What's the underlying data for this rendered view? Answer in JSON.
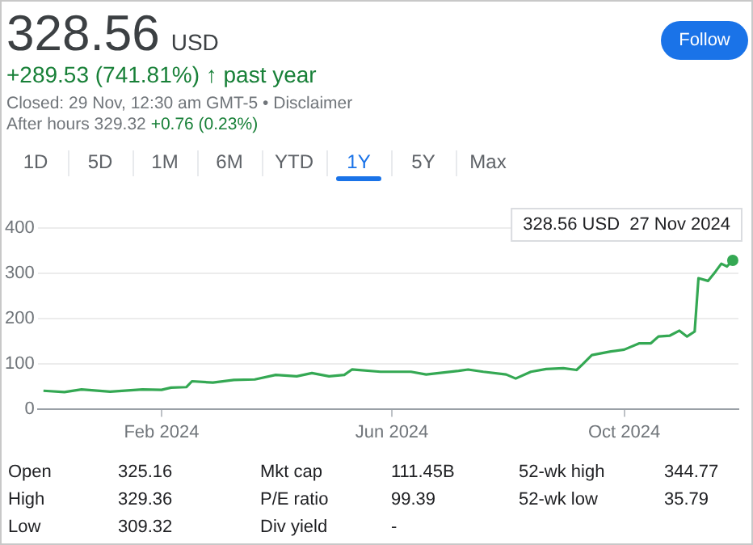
{
  "chart_data": {
    "type": "line",
    "title": "328.56 USD",
    "subtitle": "+289.53 (741.81%) ↑ past year",
    "annotations": [
      "Closed: 29 Nov, 12:30 am GMT-5 • Disclaimer",
      "After hours 329.32",
      "+0.76 (0.23%)",
      "1D",
      "5D",
      "1M",
      "6M",
      "YTD",
      "1Y",
      "5Y",
      "Max",
      "Follow",
      "Open",
      "325.16",
      "Mkt cap",
      "111.45B",
      "52-wk high",
      "344.77",
      "High",
      "329.36",
      "P/E ratio",
      "99.39",
      "52-wk low",
      "35.79",
      "Low",
      "309.32",
      "Div yield",
      "-",
      {
        "text": "328.56 USD  27 Nov 2024",
        "x": "2024-11-27",
        "y": 328.56
      }
    ],
    "x": [
      "2023-12-01",
      "2023-12-12",
      "2023-12-21",
      "2024-01-05",
      "2024-01-22",
      "2024-02-01",
      "2024-02-06",
      "2024-02-14",
      "2024-02-17",
      "2024-02-28",
      "2024-03-10",
      "2024-03-21",
      "2024-04-01",
      "2024-04-12",
      "2024-04-20",
      "2024-04-29",
      "2024-05-07",
      "2024-05-11",
      "2024-05-26",
      "2024-06-11",
      "2024-06-19",
      "2024-07-06",
      "2024-07-11",
      "2024-07-19",
      "2024-07-31",
      "2024-08-05",
      "2024-08-13",
      "2024-08-21",
      "2024-08-30",
      "2024-09-06",
      "2024-09-09",
      "2024-09-14",
      "2024-09-24",
      "2024-10-01",
      "2024-10-09",
      "2024-10-15",
      "2024-10-19",
      "2024-10-25",
      "2024-10-30",
      "2024-11-03",
      "2024-11-07",
      "2024-11-09",
      "2024-11-14",
      "2024-11-18",
      "2024-11-21",
      "2024-11-24",
      "2024-11-27"
    ],
    "series": [
      {
        "color": "#34a853",
        "values": [
          40,
          37,
          43,
          38,
          43,
          42,
          47,
          48,
          61,
          58,
          64,
          65,
          75,
          72,
          79,
          72,
          75,
          87,
          82,
          82,
          76,
          84,
          87,
          82,
          76,
          67,
          82,
          88,
          90,
          86,
          98,
          119,
          127,
          131,
          145,
          145,
          160,
          162,
          173,
          160,
          171,
          289,
          283,
          304,
          321,
          315,
          328.56
        ]
      }
    ],
    "xlim": [
      "2023-11-28",
      "2024-11-30"
    ],
    "xticks": [
      {
        "value": "2024-02-01",
        "label": "Feb 2024"
      },
      {
        "value": "2024-06-01",
        "label": "Jun 2024"
      },
      {
        "value": "2024-10-01",
        "label": "Oct 2024"
      }
    ],
    "ylim": [
      0,
      400
    ],
    "yticks": [
      0,
      100,
      200,
      300,
      400
    ],
    "grid": "y",
    "legend": false,
    "marker": "none",
    "line_style": "solid"
  }
}
